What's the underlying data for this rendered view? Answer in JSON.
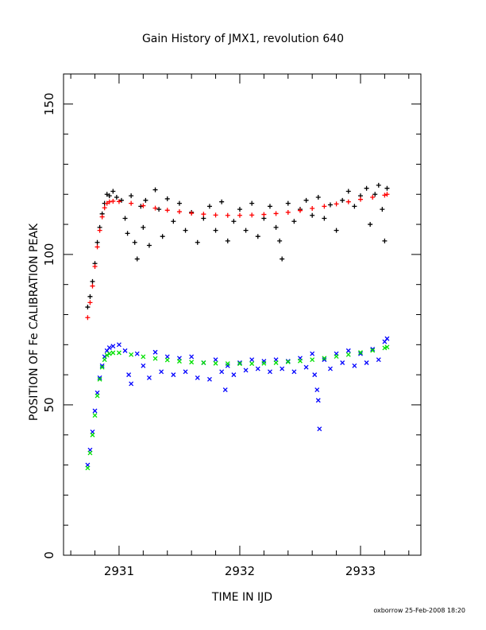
{
  "chart_data": {
    "type": "scatter",
    "title": "Gain History of JMX1, revolution 640",
    "xlabel": "TIME IN IJD",
    "ylabel": "POSITION OF Fe CALIBRATION PEAK",
    "xlim": [
      2930.54,
      2933.5
    ],
    "ylim": [
      0,
      160
    ],
    "x_ticks": [
      2931,
      2932,
      2933
    ],
    "x_tick_labels": [
      "2931",
      "2932",
      "2933"
    ],
    "y_ticks": [
      0,
      50,
      100,
      150
    ],
    "y_tick_labels": [
      "0",
      "50",
      "100",
      "150"
    ],
    "grid": false,
    "legend": "none",
    "footer": "oxborrow 25-Feb-2008 18:20",
    "series": [
      {
        "marker": "plus",
        "color": "#000000",
        "points": [
          [
            2930.74,
            82.5
          ],
          [
            2930.76,
            86.0
          ],
          [
            2930.78,
            91.0
          ],
          [
            2930.8,
            97.0
          ],
          [
            2930.82,
            104.0
          ],
          [
            2930.84,
            109.0
          ],
          [
            2930.86,
            113.5
          ],
          [
            2930.88,
            117.0
          ],
          [
            2930.9,
            120.0
          ],
          [
            2930.92,
            119.5
          ],
          [
            2930.95,
            121.0
          ],
          [
            2930.98,
            119.0
          ],
          [
            2931.02,
            118.0
          ],
          [
            2931.05,
            112.0
          ],
          [
            2931.07,
            107.0
          ],
          [
            2931.1,
            119.5
          ],
          [
            2931.13,
            104.0
          ],
          [
            2931.15,
            98.5
          ],
          [
            2931.18,
            116.0
          ],
          [
            2931.2,
            109.0
          ],
          [
            2931.22,
            118.0
          ],
          [
            2931.25,
            103.0
          ],
          [
            2931.3,
            121.5
          ],
          [
            2931.33,
            115.0
          ],
          [
            2931.36,
            106.0
          ],
          [
            2931.4,
            118.5
          ],
          [
            2931.45,
            111.0
          ],
          [
            2931.5,
            117.0
          ],
          [
            2931.55,
            108.0
          ],
          [
            2931.6,
            114.0
          ],
          [
            2931.65,
            104.0
          ],
          [
            2931.7,
            112.0
          ],
          [
            2931.75,
            116.0
          ],
          [
            2931.8,
            108.0
          ],
          [
            2931.85,
            117.5
          ],
          [
            2931.9,
            104.5
          ],
          [
            2931.95,
            111.0
          ],
          [
            2932.0,
            115.0
          ],
          [
            2932.05,
            108.0
          ],
          [
            2932.1,
            117.0
          ],
          [
            2932.15,
            106.0
          ],
          [
            2932.2,
            112.0
          ],
          [
            2932.25,
            116.0
          ],
          [
            2932.3,
            109.0
          ],
          [
            2932.33,
            104.5
          ],
          [
            2932.35,
            98.5
          ],
          [
            2932.4,
            117.0
          ],
          [
            2932.45,
            111.0
          ],
          [
            2932.5,
            115.0
          ],
          [
            2932.55,
            118.0
          ],
          [
            2932.6,
            113.0
          ],
          [
            2932.65,
            119.0
          ],
          [
            2932.7,
            112.0
          ],
          [
            2932.75,
            116.5
          ],
          [
            2932.8,
            108.0
          ],
          [
            2932.85,
            118.0
          ],
          [
            2932.9,
            121.0
          ],
          [
            2932.95,
            116.0
          ],
          [
            2933.0,
            119.5
          ],
          [
            2933.05,
            122.0
          ],
          [
            2933.08,
            110.0
          ],
          [
            2933.12,
            120.0
          ],
          [
            2933.15,
            123.0
          ],
          [
            2933.18,
            115.0
          ],
          [
            2933.2,
            104.5
          ],
          [
            2933.22,
            122.0
          ]
        ]
      },
      {
        "marker": "plus",
        "color": "#ff0000",
        "points": [
          [
            2930.74,
            79.0
          ],
          [
            2930.76,
            84.0
          ],
          [
            2930.78,
            89.5
          ],
          [
            2930.8,
            96.0
          ],
          [
            2930.82,
            102.5
          ],
          [
            2930.84,
            108.0
          ],
          [
            2930.86,
            112.5
          ],
          [
            2930.88,
            115.5
          ],
          [
            2930.9,
            117.0
          ],
          [
            2930.92,
            117.5
          ],
          [
            2930.95,
            117.7
          ],
          [
            2931.0,
            117.6
          ],
          [
            2931.1,
            117.0
          ],
          [
            2931.2,
            116.2
          ],
          [
            2931.3,
            115.4
          ],
          [
            2931.4,
            114.7
          ],
          [
            2931.5,
            114.2
          ],
          [
            2931.6,
            113.7
          ],
          [
            2931.7,
            113.4
          ],
          [
            2931.8,
            113.1
          ],
          [
            2931.9,
            113.0
          ],
          [
            2932.0,
            113.0
          ],
          [
            2932.1,
            113.1
          ],
          [
            2932.2,
            113.3
          ],
          [
            2932.3,
            113.6
          ],
          [
            2932.4,
            114.0
          ],
          [
            2932.5,
            114.6
          ],
          [
            2932.6,
            115.3
          ],
          [
            2932.7,
            116.0
          ],
          [
            2932.8,
            116.8
          ],
          [
            2932.9,
            117.5
          ],
          [
            2933.0,
            118.3
          ],
          [
            2933.1,
            119.0
          ],
          [
            2933.2,
            119.7
          ],
          [
            2933.22,
            120.0
          ]
        ]
      },
      {
        "marker": "cross",
        "color": "#0000ff",
        "points": [
          [
            2930.74,
            30.0
          ],
          [
            2930.76,
            35.0
          ],
          [
            2930.78,
            41.0
          ],
          [
            2930.8,
            48.0
          ],
          [
            2930.82,
            54.0
          ],
          [
            2930.84,
            59.0
          ],
          [
            2930.86,
            63.0
          ],
          [
            2930.88,
            66.0
          ],
          [
            2930.9,
            68.0
          ],
          [
            2930.92,
            69.0
          ],
          [
            2930.95,
            69.5
          ],
          [
            2931.0,
            70.0
          ],
          [
            2931.05,
            68.0
          ],
          [
            2931.08,
            60.0
          ],
          [
            2931.1,
            57.0
          ],
          [
            2931.15,
            67.0
          ],
          [
            2931.2,
            63.0
          ],
          [
            2931.25,
            59.0
          ],
          [
            2931.3,
            67.5
          ],
          [
            2931.35,
            61.0
          ],
          [
            2931.4,
            66.0
          ],
          [
            2931.45,
            60.0
          ],
          [
            2931.5,
            65.5
          ],
          [
            2931.55,
            61.0
          ],
          [
            2931.6,
            66.0
          ],
          [
            2931.65,
            59.0
          ],
          [
            2931.7,
            64.0
          ],
          [
            2931.75,
            58.5
          ],
          [
            2931.8,
            65.0
          ],
          [
            2931.85,
            61.0
          ],
          [
            2931.88,
            55.0
          ],
          [
            2931.9,
            63.0
          ],
          [
            2931.95,
            60.0
          ],
          [
            2932.0,
            64.0
          ],
          [
            2932.05,
            61.5
          ],
          [
            2932.1,
            65.0
          ],
          [
            2932.15,
            62.0
          ],
          [
            2932.2,
            64.5
          ],
          [
            2932.25,
            61.0
          ],
          [
            2932.3,
            65.0
          ],
          [
            2932.35,
            62.0
          ],
          [
            2932.4,
            64.5
          ],
          [
            2932.45,
            61.0
          ],
          [
            2932.5,
            65.5
          ],
          [
            2932.55,
            62.5
          ],
          [
            2932.6,
            67.0
          ],
          [
            2932.62,
            60.0
          ],
          [
            2932.64,
            55.0
          ],
          [
            2932.65,
            51.5
          ],
          [
            2932.66,
            42.0
          ],
          [
            2932.7,
            65.0
          ],
          [
            2932.75,
            62.0
          ],
          [
            2932.8,
            67.0
          ],
          [
            2932.85,
            64.0
          ],
          [
            2932.9,
            68.0
          ],
          [
            2932.95,
            63.0
          ],
          [
            2933.0,
            67.0
          ],
          [
            2933.05,
            64.0
          ],
          [
            2933.1,
            68.5
          ],
          [
            2933.15,
            65.0
          ],
          [
            2933.2,
            71.0
          ],
          [
            2933.22,
            72.0
          ]
        ]
      },
      {
        "marker": "cross",
        "color": "#00e000",
        "points": [
          [
            2930.74,
            29.0
          ],
          [
            2930.76,
            34.0
          ],
          [
            2930.78,
            40.0
          ],
          [
            2930.8,
            46.5
          ],
          [
            2930.82,
            53.0
          ],
          [
            2930.84,
            58.5
          ],
          [
            2930.86,
            62.5
          ],
          [
            2930.88,
            65.0
          ],
          [
            2930.9,
            66.5
          ],
          [
            2930.92,
            67.0
          ],
          [
            2930.95,
            67.3
          ],
          [
            2931.0,
            67.3
          ],
          [
            2931.1,
            66.7
          ],
          [
            2931.2,
            66.0
          ],
          [
            2931.3,
            65.4
          ],
          [
            2931.4,
            64.9
          ],
          [
            2931.5,
            64.5
          ],
          [
            2931.6,
            64.2
          ],
          [
            2931.7,
            64.0
          ],
          [
            2931.8,
            63.8
          ],
          [
            2931.9,
            63.7
          ],
          [
            2932.0,
            63.7
          ],
          [
            2932.1,
            63.7
          ],
          [
            2932.2,
            63.8
          ],
          [
            2932.3,
            64.0
          ],
          [
            2932.4,
            64.3
          ],
          [
            2932.5,
            64.6
          ],
          [
            2932.6,
            65.0
          ],
          [
            2932.7,
            65.5
          ],
          [
            2932.8,
            66.1
          ],
          [
            2932.9,
            66.7
          ],
          [
            2933.0,
            67.4
          ],
          [
            2933.1,
            68.1
          ],
          [
            2933.2,
            68.9
          ],
          [
            2933.22,
            69.2
          ]
        ]
      }
    ]
  }
}
